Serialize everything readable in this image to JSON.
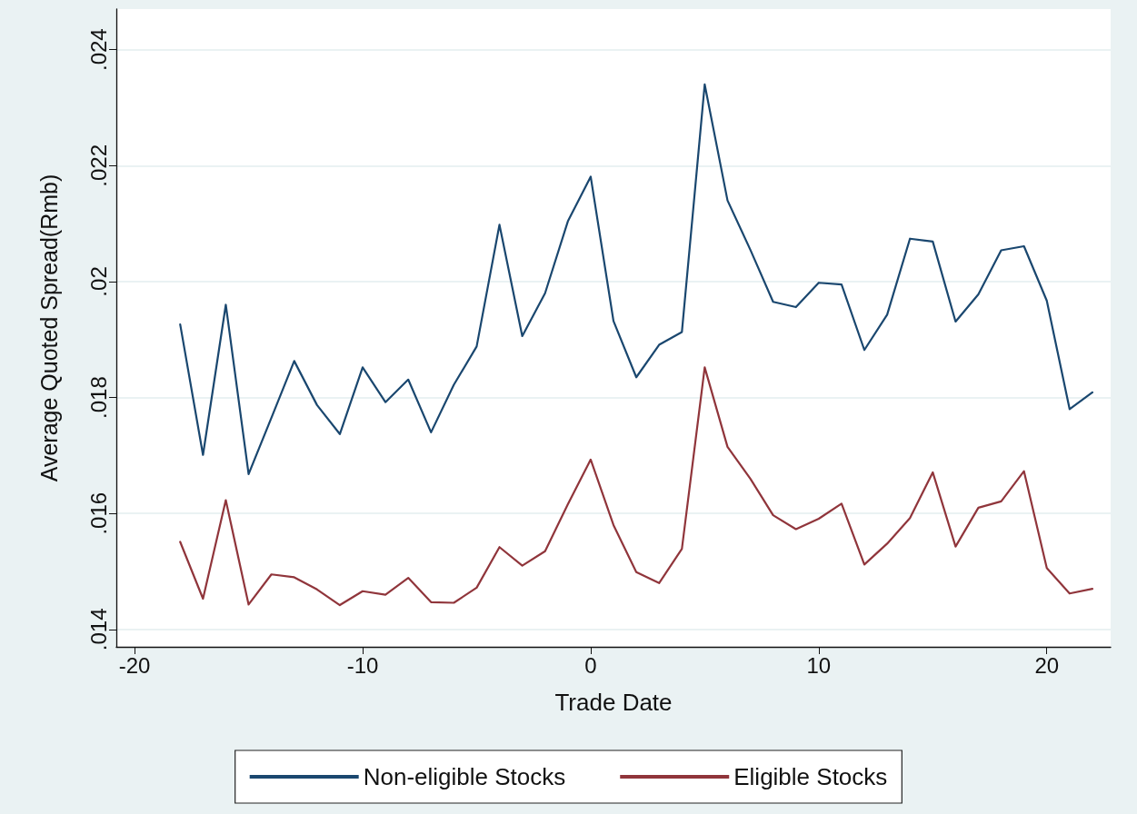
{
  "chart_data": {
    "type": "line",
    "xlabel": "Trade Date",
    "ylabel": "Average Quoted Spread(Rmb)",
    "x": [
      -18,
      -17,
      -16,
      -15,
      -14,
      -13,
      -12,
      -11,
      -10,
      -9,
      -8,
      -7,
      -6,
      -5,
      -4,
      -3,
      -2,
      -1,
      0,
      1,
      2,
      3,
      4,
      5,
      6,
      7,
      8,
      9,
      10,
      11,
      12,
      13,
      14,
      15,
      16,
      17,
      18,
      19,
      20,
      21,
      22
    ],
    "series": [
      {
        "name": "Non-eligible Stocks",
        "color": "#1a476f",
        "values": [
          0.01926,
          0.01701,
          0.0196,
          0.01668,
          0.01765,
          0.01863,
          0.01787,
          0.01737,
          0.01852,
          0.01792,
          0.01831,
          0.0174,
          0.01822,
          0.01888,
          0.02098,
          0.01906,
          0.0198,
          0.02104,
          0.02181,
          0.01932,
          0.01835,
          0.01891,
          0.01913,
          0.0234,
          0.0214,
          0.02055,
          0.01965,
          0.01956,
          0.01998,
          0.01995,
          0.01882,
          0.01943,
          0.02074,
          0.02069,
          0.01931,
          0.01978,
          0.02054,
          0.02061,
          0.01967,
          0.0178,
          0.01809
        ]
      },
      {
        "name": "Eligible Stocks",
        "color": "#90353b",
        "values": [
          0.01551,
          0.01453,
          0.01623,
          0.01443,
          0.01495,
          0.0149,
          0.01469,
          0.01442,
          0.01466,
          0.0146,
          0.01489,
          0.01447,
          0.01446,
          0.01472,
          0.01542,
          0.0151,
          0.01535,
          0.01616,
          0.01693,
          0.0158,
          0.01499,
          0.0148,
          0.01539,
          0.01852,
          0.01715,
          0.0166,
          0.01597,
          0.01573,
          0.01591,
          0.01617,
          0.01512,
          0.01548,
          0.01592,
          0.01671,
          0.01543,
          0.0161,
          0.01621,
          0.01673,
          0.01506,
          0.01462,
          0.0147
        ]
      }
    ],
    "xlim": [
      -20.8,
      22.8
    ],
    "xticks": [
      -20,
      -10,
      0,
      10,
      20
    ],
    "ylim": [
      0.0137,
      0.0247
    ],
    "yticks": [
      {
        "value": 0.014,
        "label": ".014"
      },
      {
        "value": 0.016,
        "label": ".016"
      },
      {
        "value": 0.018,
        "label": ".018"
      },
      {
        "value": 0.02,
        "label": ".02"
      },
      {
        "value": 0.022,
        "label": ".022"
      },
      {
        "value": 0.024,
        "label": ".024"
      }
    ],
    "grid": "y",
    "legend": "bottom",
    "marker": "none",
    "line_style": "solid"
  }
}
